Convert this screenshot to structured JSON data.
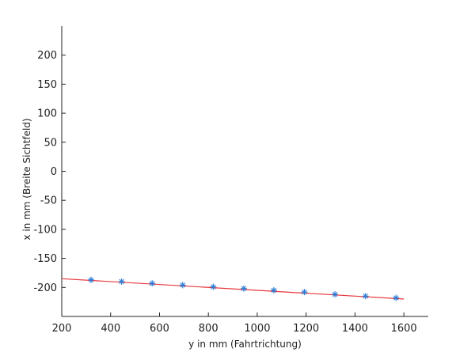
{
  "chart_data": {
    "type": "scatter",
    "title": "",
    "xlabel": "y in mm (Fahrtrichtung)",
    "ylabel": "x in mm (Breite Sichtfeld)",
    "xlim": [
      200,
      1700
    ],
    "ylim": [
      -250,
      250
    ],
    "x_ticks": [
      200,
      400,
      600,
      800,
      1000,
      1200,
      1400,
      1600
    ],
    "y_ticks": [
      200,
      150,
      100,
      50,
      0,
      -50,
      -100,
      -150,
      -200
    ],
    "grid": false,
    "series": [
      {
        "type": "scatter",
        "marker": "asterisk",
        "color": "#2b7bd4",
        "points": [
          {
            "x": 320,
            "y": -187
          },
          {
            "x": 445,
            "y": -190
          },
          {
            "x": 570,
            "y": -193
          },
          {
            "x": 695,
            "y": -196
          },
          {
            "x": 820,
            "y": -199
          },
          {
            "x": 945,
            "y": -202
          },
          {
            "x": 1068,
            "y": -205
          },
          {
            "x": 1193,
            "y": -208
          },
          {
            "x": 1318,
            "y": -212
          },
          {
            "x": 1443,
            "y": -215
          },
          {
            "x": 1568,
            "y": -218
          }
        ]
      },
      {
        "type": "line",
        "color": "#e8383d",
        "points": [
          {
            "x": 200,
            "y": -185
          },
          {
            "x": 1600,
            "y": -220
          }
        ]
      }
    ]
  }
}
